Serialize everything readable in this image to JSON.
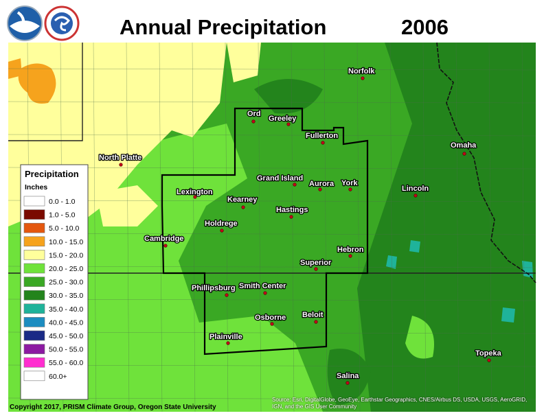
{
  "header": {
    "title": "Annual Precipitation",
    "year": "2006"
  },
  "legend": {
    "title": "Precipitation",
    "units": "Inches",
    "items": [
      {
        "label": "0.0 - 1.0",
        "color": "#ffffff"
      },
      {
        "label": "1.0 - 5.0",
        "color": "#7a0a00"
      },
      {
        "label": "5.0 - 10.0",
        "color": "#e4570e"
      },
      {
        "label": "10.0 - 15.0",
        "color": "#f6a31d"
      },
      {
        "label": "15.0 - 20.0",
        "color": "#ffff9c"
      },
      {
        "label": "20.0 - 25.0",
        "color": "#6fe23b"
      },
      {
        "label": "25.0 - 30.0",
        "color": "#3aa824"
      },
      {
        "label": "30.0 - 35.0",
        "color": "#23841c"
      },
      {
        "label": "35.0 - 40.0",
        "color": "#1fb39a"
      },
      {
        "label": "40.0 - 45.0",
        "color": "#1c8cc0"
      },
      {
        "label": "45.0 - 50.0",
        "color": "#1a2a86"
      },
      {
        "label": "50.0 - 55.0",
        "color": "#8c1aa2"
      },
      {
        "label": "55.0 - 60.0",
        "color": "#ff2ed0"
      },
      {
        "label": "60.0+",
        "color": "#ffffff"
      }
    ]
  },
  "cities": [
    {
      "name": "Norfolk"
    },
    {
      "name": "Ord"
    },
    {
      "name": "Greeley"
    },
    {
      "name": "Fullerton"
    },
    {
      "name": "North Platte"
    },
    {
      "name": "Omaha"
    },
    {
      "name": "Grand Island"
    },
    {
      "name": "Aurora"
    },
    {
      "name": "York"
    },
    {
      "name": "Lincoln"
    },
    {
      "name": "Lexington"
    },
    {
      "name": "Kearney"
    },
    {
      "name": "Hastings"
    },
    {
      "name": "Holdrege"
    },
    {
      "name": "Cambridge"
    },
    {
      "name": "Hebron"
    },
    {
      "name": "Superior"
    },
    {
      "name": "Phillipsburg"
    },
    {
      "name": "Smith Center"
    },
    {
      "name": "Beloit"
    },
    {
      "name": "Osborne"
    },
    {
      "name": "Plainville"
    },
    {
      "name": "Topeka"
    },
    {
      "name": "Salina"
    }
  ],
  "footer": {
    "copyright": "Copyright 2017, PRISM Climate Group, Oregon State University",
    "attribution": "Source: Esri, DigitalGlobe, GeoEye, Earthstar Geographics, CNES/Airbus DS, USDA, USGS, AeroGRID, IGN, and the GIS User Community"
  }
}
